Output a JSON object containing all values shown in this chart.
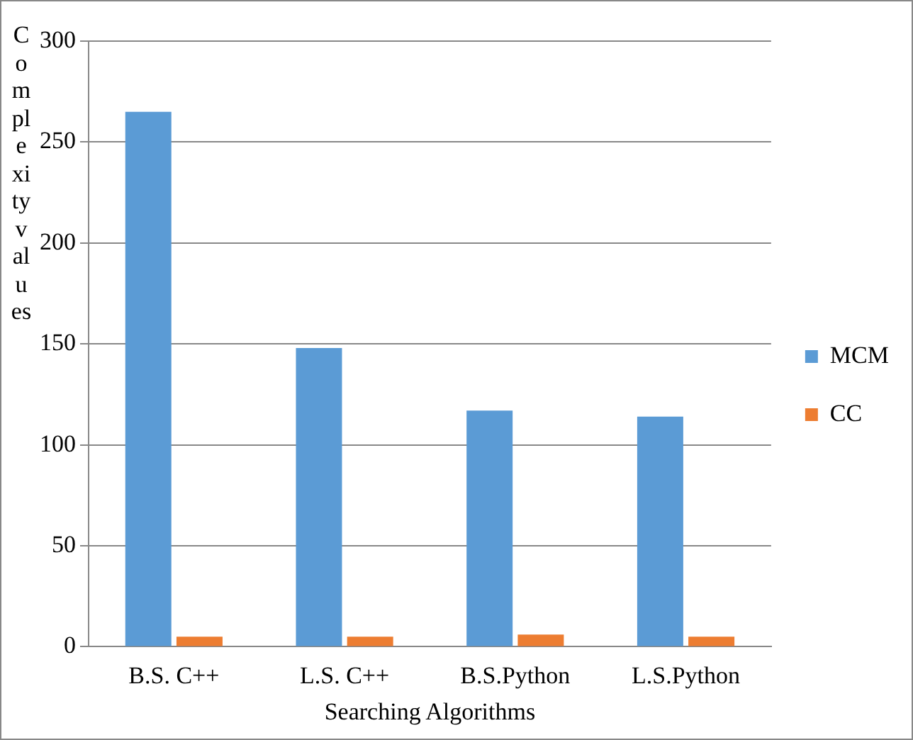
{
  "chart_data": {
    "type": "bar",
    "xlabel": "Searching Algorithms",
    "ylabel": "Complexity values",
    "categories": [
      "B.S. C++",
      "L.S. C++",
      "B.S.Python",
      "L.S.Python"
    ],
    "series": [
      {
        "name": "MCM",
        "color": "#5b9bd5",
        "values": [
          265,
          148,
          117,
          114
        ]
      },
      {
        "name": "CC",
        "color": "#ed7d31",
        "values": [
          5,
          5,
          6,
          5
        ]
      }
    ],
    "ylim": [
      0,
      300
    ],
    "yticks": [
      0,
      50,
      100,
      150,
      200,
      250,
      300
    ],
    "grid": "y",
    "legend": "right"
  }
}
